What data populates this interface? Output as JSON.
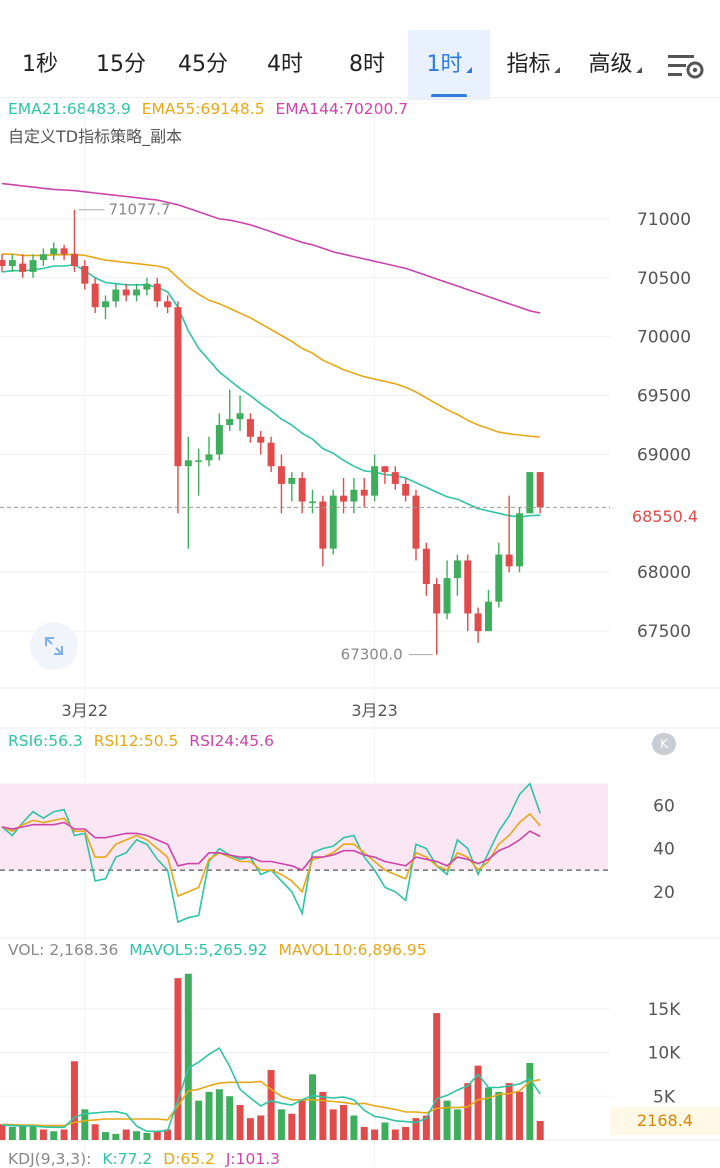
{
  "tabs": [
    {
      "label": "1秒",
      "active": false,
      "dropdown": false
    },
    {
      "label": "15分",
      "active": false,
      "dropdown": false
    },
    {
      "label": "45分",
      "active": false,
      "dropdown": false
    },
    {
      "label": "4时",
      "active": false,
      "dropdown": false
    },
    {
      "label": "8时",
      "active": false,
      "dropdown": false
    },
    {
      "label": "1时",
      "active": true,
      "dropdown": true
    },
    {
      "label": "指标",
      "active": false,
      "dropdown": true
    },
    {
      "label": "高级",
      "active": false,
      "dropdown": true
    }
  ],
  "settings_icon": "chart-settings-icon",
  "ema_legend": {
    "ema21": "EMA21:68483.9",
    "ema55": "EMA55:69148.5",
    "ema144": "EMA144:70200.7"
  },
  "strategy_label": "自定义TD指标策略_副本",
  "colors": {
    "up": "#3fae5c",
    "down": "#e04b4b",
    "ema21": "#2ec4a6",
    "ema55": "#e6a817",
    "ema144": "#cc44aa",
    "accent": "#2f7de1"
  },
  "price_axis": [
    "71000",
    "70500",
    "70000",
    "69500",
    "69000",
    "68000",
    "67500"
  ],
  "last_price": "68550.4",
  "max_label": "71077.7",
  "min_label": "67300.0",
  "date_labels": [
    "3月22",
    "3月23"
  ],
  "rsi_legend": {
    "rsi6": "RSI6:56.3",
    "rsi12": "RSI12:50.5",
    "rsi24": "RSI24:45.6"
  },
  "rsi_axis": [
    "60",
    "40",
    "20"
  ],
  "rsi_collapse_label": "K",
  "vol_legend": {
    "vol": "VOL: 2,168.36",
    "mavol5": "MAVOL5:5,265.92",
    "mavol10": "MAVOL10:6,896.95"
  },
  "vol_axis": [
    "15K",
    "10K",
    "5K"
  ],
  "vol_last": "2168.4",
  "kdj_legend": {
    "name": "KDJ(9,3,3):",
    "k": "K:77.2",
    "d": "D:65.2",
    "j": "J:101.3"
  },
  "chart_data": [
    {
      "type": "candlestick",
      "title": "1时",
      "ylim": [
        67000,
        71500
      ],
      "candles": [
        [
          70650,
          70600,
          70700,
          70550
        ],
        [
          70600,
          70650,
          70700,
          70550
        ],
        [
          70620,
          70550,
          70700,
          70500
        ],
        [
          70550,
          70650,
          70700,
          70500
        ],
        [
          70650,
          70700,
          70750,
          70600
        ],
        [
          70700,
          70750,
          70800,
          70650
        ],
        [
          70750,
          70700,
          70780,
          70650
        ],
        [
          70700,
          70600,
          71077.7,
          70550
        ],
        [
          70600,
          70450,
          70650,
          70400
        ],
        [
          70450,
          70250,
          70500,
          70200
        ],
        [
          70250,
          70300,
          70350,
          70150
        ],
        [
          70300,
          70400,
          70450,
          70250
        ],
        [
          70400,
          70350,
          70450,
          70300
        ],
        [
          70350,
          70400,
          70450,
          70300
        ],
        [
          70400,
          70450,
          70500,
          70350
        ],
        [
          70450,
          70300,
          70500,
          70250
        ],
        [
          70300,
          70250,
          70350,
          70200
        ],
        [
          70250,
          68900,
          70300,
          68500
        ],
        [
          68900,
          68950,
          69150,
          68200
        ],
        [
          68950,
          68950,
          69050,
          68650
        ],
        [
          68950,
          69000,
          69150,
          68900
        ],
        [
          69000,
          69250,
          69350,
          68950
        ],
        [
          69250,
          69300,
          69550,
          69200
        ],
        [
          69300,
          69350,
          69500,
          69200
        ],
        [
          69300,
          69150,
          69350,
          69100
        ],
        [
          69150,
          69100,
          69200,
          69000
        ],
        [
          69100,
          68900,
          69150,
          68850
        ],
        [
          68900,
          68750,
          69000,
          68500
        ],
        [
          68750,
          68800,
          68850,
          68600
        ],
        [
          68800,
          68600,
          68850,
          68500
        ],
        [
          68600,
          68600,
          68700,
          68500
        ],
        [
          68600,
          68200,
          68650,
          68050
        ],
        [
          68200,
          68650,
          68700,
          68150
        ],
        [
          68650,
          68600,
          68800,
          68500
        ],
        [
          68600,
          68700,
          68800,
          68500
        ],
        [
          68700,
          68650,
          68800,
          68550
        ],
        [
          68650,
          68900,
          69000,
          68600
        ],
        [
          68900,
          68850,
          68900,
          68750
        ],
        [
          68850,
          68750,
          68900,
          68700
        ],
        [
          68750,
          68650,
          68800,
          68600
        ],
        [
          68650,
          68200,
          68700,
          68100
        ],
        [
          68200,
          67900,
          68250,
          67800
        ],
        [
          67900,
          67650,
          67950,
          67300
        ],
        [
          67650,
          67950,
          68100,
          67600
        ],
        [
          67950,
          68100,
          68150,
          67800
        ],
        [
          68100,
          67650,
          68150,
          67500
        ],
        [
          67650,
          67500,
          67700,
          67400
        ],
        [
          67500,
          67750,
          67850,
          67500
        ],
        [
          67750,
          68150,
          68250,
          67700
        ],
        [
          68150,
          68050,
          68650,
          68000
        ],
        [
          68050,
          68500,
          68550,
          68000
        ],
        [
          68500,
          68850,
          68850,
          68500
        ],
        [
          68850,
          68550,
          68850,
          68500
        ]
      ],
      "ema21": [
        70550,
        70560,
        70560,
        70565,
        70580,
        70600,
        70600,
        70610,
        70560,
        70500,
        70460,
        70450,
        70440,
        70440,
        70440,
        70420,
        70380,
        70250,
        70050,
        69900,
        69800,
        69700,
        69630,
        69560,
        69500,
        69430,
        69370,
        69300,
        69250,
        69180,
        69130,
        69050,
        69010,
        68950,
        68900,
        68860,
        68850,
        68830,
        68820,
        68800,
        68760,
        68720,
        68680,
        68640,
        68620,
        68580,
        68540,
        68520,
        68500,
        68480,
        68470,
        68480,
        68484
      ],
      "ema55": [
        70700,
        70700,
        70690,
        70690,
        70690,
        70695,
        70695,
        70700,
        70690,
        70670,
        70650,
        70640,
        70630,
        70620,
        70610,
        70600,
        70580,
        70500,
        70420,
        70360,
        70310,
        70280,
        70240,
        70200,
        70160,
        70110,
        70060,
        70010,
        69960,
        69900,
        69860,
        69800,
        69760,
        69720,
        69690,
        69660,
        69640,
        69620,
        69600,
        69570,
        69530,
        69480,
        69430,
        69380,
        69340,
        69290,
        69250,
        69220,
        69190,
        69175,
        69165,
        69155,
        69148.5
      ],
      "ema144": [
        71300,
        71290,
        71280,
        71270,
        71260,
        71250,
        71245,
        71240,
        71230,
        71220,
        71210,
        71200,
        71190,
        71180,
        71170,
        71160,
        71140,
        71120,
        71090,
        71060,
        71030,
        71000,
        70990,
        70970,
        70950,
        70920,
        70890,
        70860,
        70830,
        70800,
        70780,
        70750,
        70720,
        70700,
        70680,
        70660,
        70640,
        70620,
        70600,
        70580,
        70550,
        70520,
        70490,
        70460,
        70430,
        70400,
        70370,
        70340,
        70310,
        70280,
        70250,
        70220,
        70200.7
      ]
    },
    {
      "type": "line",
      "title": "RSI",
      "ylim": [
        0,
        80
      ],
      "series": [
        {
          "name": "RSI6",
          "values": [
            50,
            46,
            52,
            57,
            54,
            57,
            58,
            46,
            47,
            25,
            26,
            36,
            38,
            44,
            42,
            35,
            30,
            6,
            8,
            9,
            34,
            40,
            37,
            35,
            36,
            28,
            30,
            25,
            20,
            10,
            38,
            40,
            41,
            45,
            46,
            36,
            30,
            22,
            20,
            16,
            42,
            40,
            32,
            28,
            44,
            40,
            28,
            38,
            48,
            55,
            65,
            70,
            56.3
          ]
        },
        {
          "name": "RSI12",
          "values": [
            50,
            48,
            51,
            53,
            52,
            53,
            54,
            48,
            48,
            36,
            36,
            42,
            44,
            46,
            44,
            40,
            36,
            18,
            20,
            22,
            35,
            38,
            36,
            34,
            34,
            30,
            30,
            28,
            25,
            20,
            35,
            36,
            38,
            42,
            42,
            38,
            34,
            30,
            28,
            26,
            38,
            36,
            32,
            30,
            38,
            36,
            30,
            34,
            42,
            46,
            52,
            56,
            50.5
          ]
        },
        {
          "name": "RSI24",
          "values": [
            50,
            49,
            50,
            51,
            51,
            51,
            52,
            49,
            49,
            45,
            45,
            46,
            47,
            47,
            46,
            44,
            42,
            32,
            33,
            33,
            38,
            38,
            37,
            36,
            36,
            34,
            34,
            33,
            32,
            30,
            36,
            36,
            37,
            39,
            39,
            37,
            36,
            34,
            33,
            32,
            36,
            35,
            34,
            32,
            36,
            35,
            33,
            35,
            39,
            41,
            44,
            48,
            45.6
          ]
        }
      ],
      "band": [
        30,
        70
      ]
    },
    {
      "type": "bar",
      "title": "VOL",
      "ylim": [
        0,
        20000
      ],
      "volumes": [
        1800,
        1500,
        1600,
        1700,
        1200,
        1000,
        1200,
        9000,
        3500,
        1800,
        900,
        700,
        1200,
        1000,
        800,
        1000,
        1200,
        18500,
        19000,
        4500,
        5500,
        5800,
        5000,
        4000,
        2500,
        2800,
        8000,
        3500,
        3000,
        4500,
        7500,
        5500,
        3500,
        4000,
        2800,
        1500,
        1200,
        2000,
        1200,
        1500,
        2500,
        2800,
        14500,
        4500,
        3500,
        6500,
        8500,
        6000,
        5500,
        6500,
        5500,
        8800,
        2168.36
      ],
      "directions": [
        "down",
        "up",
        "up",
        "up",
        "down",
        "up",
        "down",
        "down",
        "up",
        "down",
        "up",
        "up",
        "down",
        "up",
        "up",
        "down",
        "down",
        "down",
        "up",
        "up",
        "up",
        "up",
        "up",
        "down",
        "down",
        "down",
        "down",
        "up",
        "down",
        "down",
        "up",
        "down",
        "down",
        "down",
        "up",
        "down",
        "down",
        "up",
        "down",
        "down",
        "down",
        "down",
        "down",
        "up",
        "up",
        "down",
        "down",
        "up",
        "up",
        "down",
        "down",
        "up",
        "down"
      ],
      "mavol5": [
        1700,
        1650,
        1600,
        1600,
        1500,
        1450,
        1450,
        2600,
        3000,
        3100,
        3200,
        3250,
        3000,
        1600,
        1000,
        1000,
        1100,
        4500,
        8200,
        8900,
        9800,
        10500,
        8400,
        5800,
        4800,
        3900,
        4500,
        4200,
        4000,
        4600,
        5100,
        4900,
        4800,
        4900,
        4600,
        3400,
        2700,
        2500,
        2200,
        2100,
        2000,
        2500,
        4700,
        5100,
        5700,
        6200,
        7500,
        6000,
        6000,
        6200,
        6400,
        7000,
        5265.92
      ],
      "mavol10": [
        1800,
        1750,
        1700,
        1700,
        1650,
        1650,
        1650,
        2000,
        2200,
        2300,
        2400,
        2400,
        2400,
        2400,
        2400,
        2400,
        2300,
        3900,
        5600,
        5800,
        6200,
        6500,
        6600,
        6600,
        6600,
        6700,
        5800,
        5000,
        4600,
        4600,
        4600,
        4500,
        4400,
        4300,
        4100,
        4200,
        3900,
        3700,
        3500,
        3200,
        3200,
        3100,
        3600,
        3700,
        3700,
        3800,
        4600,
        4800,
        5200,
        5300,
        5600,
        6700,
        6896.95
      ]
    }
  ]
}
